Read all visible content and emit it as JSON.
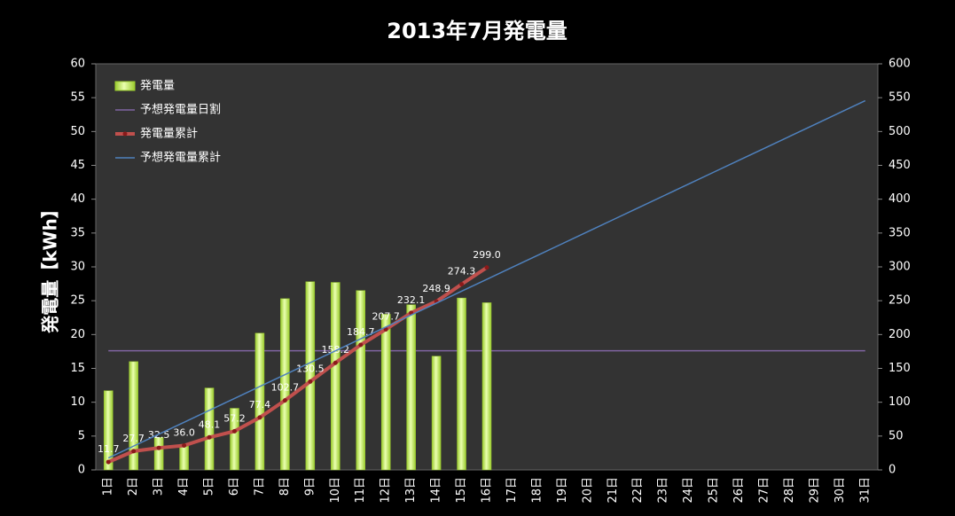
{
  "chart_data": {
    "type": "bar",
    "title": "2013年7月発電量",
    "ylabel": "発電量【kWh】",
    "categories": [
      "1日",
      "2日",
      "3日",
      "4日",
      "5日",
      "6日",
      "7日",
      "8日",
      "9日",
      "10日",
      "11日",
      "12日",
      "13日",
      "14日",
      "15日",
      "16日",
      "17日",
      "18日",
      "19日",
      "20日",
      "21日",
      "22日",
      "23日",
      "24日",
      "25日",
      "26日",
      "27日",
      "28日",
      "29日",
      "30日",
      "31日"
    ],
    "series": [
      {
        "name": "発電量",
        "type": "bar",
        "axis": "y",
        "color": "#9bcc2e",
        "values": [
          11.7,
          16.0,
          4.8,
          3.5,
          12.1,
          9.1,
          20.2,
          25.3,
          27.8,
          27.7,
          26.5,
          23.0,
          24.4,
          16.8,
          25.4,
          24.7,
          null,
          null,
          null,
          null,
          null,
          null,
          null,
          null,
          null,
          null,
          null,
          null,
          null,
          null,
          null
        ]
      },
      {
        "name": "予想発電量日割",
        "type": "line",
        "axis": "y",
        "color": "#8064a2",
        "values": [
          17.6,
          17.6,
          17.6,
          17.6,
          17.6,
          17.6,
          17.6,
          17.6,
          17.6,
          17.6,
          17.6,
          17.6,
          17.6,
          17.6,
          17.6,
          17.6,
          17.6,
          17.6,
          17.6,
          17.6,
          17.6,
          17.6,
          17.6,
          17.6,
          17.6,
          17.6,
          17.6,
          17.6,
          17.6,
          17.6,
          17.6
        ]
      },
      {
        "name": "発電量累計",
        "type": "line",
        "axis": "y2",
        "color": "#c0504d",
        "markers": true,
        "values": [
          11.7,
          27.7,
          32.5,
          36.0,
          48.1,
          57.2,
          77.4,
          102.7,
          130.5,
          158.2,
          184.7,
          207.7,
          232.1,
          248.9,
          274.3,
          299.0,
          null,
          null,
          null,
          null,
          null,
          null,
          null,
          null,
          null,
          null,
          null,
          null,
          null,
          null,
          null
        ],
        "value_labels": [
          "11.7",
          "27.7",
          "32.5",
          "36.0",
          "48.1",
          "57.2",
          "77.4",
          "102.7",
          "130.5",
          "158.2",
          "184.7",
          "207.7",
          "232.1",
          "248.9",
          "274.3",
          "299.0",
          null,
          null,
          null,
          null,
          null,
          null,
          null,
          null,
          null,
          null,
          null,
          null,
          null,
          null,
          null
        ]
      },
      {
        "name": "予想発電量累計",
        "type": "line",
        "axis": "y2",
        "color": "#4f81bd",
        "values": [
          17.6,
          35.2,
          52.8,
          70.4,
          88.0,
          105.6,
          123.2,
          140.8,
          158.4,
          176.0,
          193.6,
          211.2,
          228.8,
          246.4,
          264.0,
          281.6,
          299.2,
          316.8,
          334.4,
          352.0,
          369.6,
          387.2,
          404.8,
          422.4,
          440.0,
          457.6,
          475.2,
          492.8,
          510.4,
          528.0,
          545.6
        ]
      }
    ],
    "ylim": [
      0,
      60
    ],
    "yticks": [
      0,
      5,
      10,
      15,
      20,
      25,
      30,
      35,
      40,
      45,
      50,
      55,
      60
    ],
    "y2lim": [
      0,
      600
    ],
    "y2ticks": [
      0,
      50,
      100,
      150,
      200,
      250,
      300,
      350,
      400,
      450,
      500,
      550,
      600
    ],
    "grid": false,
    "legend": "upper left"
  }
}
